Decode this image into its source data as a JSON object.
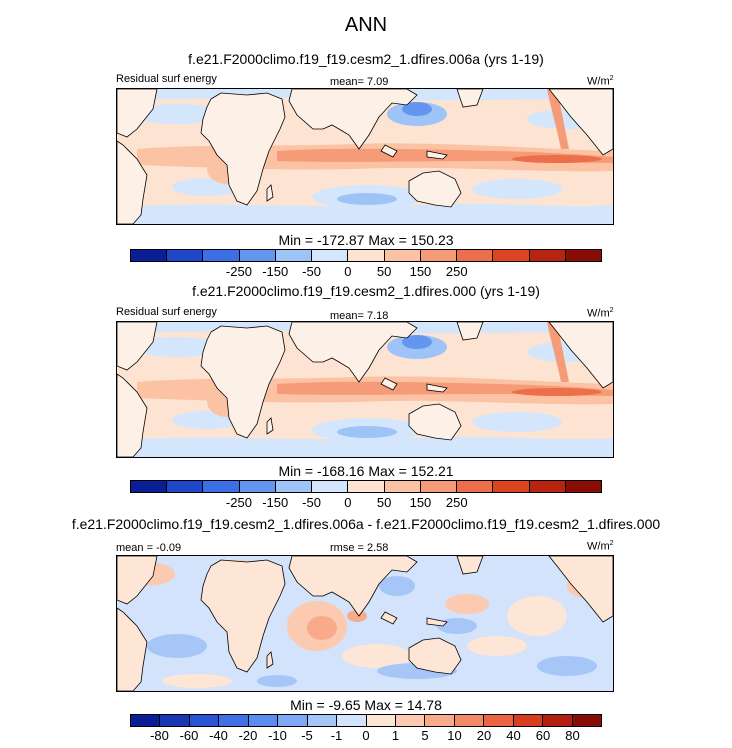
{
  "main_title": "ANN",
  "panels": [
    {
      "title": "f.e21.F2000climo.f19_f19.cesm2_1.dfires.006a (yrs 1-19)",
      "left_label": "Residual surf energy",
      "center_label": "mean=  7.09",
      "units": "W/m",
      "units_sup": "2",
      "min_max": "Min = -172.87 Max = 150.23",
      "ticks": [
        "-250",
        "-150",
        "-50",
        "0",
        "50",
        "150",
        "250"
      ]
    },
    {
      "title": "f.e21.F2000climo.f19_f19.cesm2_1.dfires.000 (yrs 1-19)",
      "left_label": "Residual surf energy",
      "center_label": "mean=  7.18",
      "units": "W/m",
      "units_sup": "2",
      "min_max": "Min = -168.16 Max = 152.21",
      "ticks": [
        "-250",
        "-150",
        "-50",
        "0",
        "50",
        "150",
        "250"
      ]
    },
    {
      "title": "f.e21.F2000climo.f19_f19.cesm2_1.dfires.006a - f.e21.F2000climo.f19_f19.cesm2_1.dfires.000",
      "left_label": "mean = -0.09",
      "center_label": "rmse =  2.58",
      "units": "W/m",
      "units_sup": "2",
      "min_max": "Min = -9.65 Max = 14.78",
      "ticks": [
        "-80",
        "-60",
        "-40",
        "-20",
        "-10",
        "-5",
        "-1",
        "0",
        "1",
        "5",
        "10",
        "20",
        "40",
        "60",
        "80"
      ]
    }
  ],
  "colors": {
    "top_cbar": [
      "#0a1f96",
      "#1e46c8",
      "#3c6ee6",
      "#6496f0",
      "#9ec3f7",
      "#d4e6fb",
      "#fde4d2",
      "#fbc3a3",
      "#f59b78",
      "#ec6e4a",
      "#dc4423",
      "#b82410",
      "#8a0d05"
    ],
    "diff_cbar": [
      "#0a1f96",
      "#1838b4",
      "#2a55d2",
      "#3f70e6",
      "#5c8cef",
      "#7ea8f4",
      "#a6c6f8",
      "#d2e3fb",
      "#fde6d6",
      "#fbcab0",
      "#f8ab8a",
      "#f38966",
      "#ea6342",
      "#d63d21",
      "#b32010",
      "#8a0d05"
    ],
    "ocean_base": "#fde4d2",
    "land_base": "#fdf0e6",
    "coast": "#000000"
  }
}
